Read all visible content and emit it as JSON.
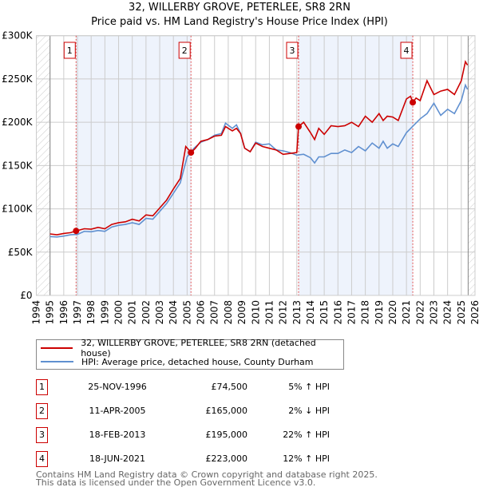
{
  "title_line1": "32, WILLERBY GROVE, PETERLEE, SR8 2RN",
  "title_line2": "Price paid vs. HM Land Registry's House Price Index (HPI)",
  "colors": {
    "property": "#cc0000",
    "hpi": "#6090d0",
    "band": "#eef3fc"
  },
  "chart_data": {
    "type": "line",
    "xlim": [
      1994,
      2026
    ],
    "ylim": [
      0,
      300000
    ],
    "x_ticks": [
      1994,
      1995,
      1996,
      1997,
      1998,
      1999,
      2000,
      2001,
      2002,
      2003,
      2004,
      2005,
      2006,
      2007,
      2008,
      2009,
      2010,
      2011,
      2012,
      2013,
      2014,
      2015,
      2016,
      2017,
      2018,
      2019,
      2020,
      2021,
      2022,
      2023,
      2024,
      2025,
      2026
    ],
    "y_ticks": [
      {
        "v": 0,
        "label": "£0"
      },
      {
        "v": 50000,
        "label": "£50K"
      },
      {
        "v": 100000,
        "label": "£100K"
      },
      {
        "v": 150000,
        "label": "£150K"
      },
      {
        "v": 200000,
        "label": "£200K"
      },
      {
        "v": 250000,
        "label": "£250K"
      },
      {
        "v": 300000,
        "label": "£300K"
      }
    ],
    "data_range": [
      1995,
      2025.5
    ],
    "series": [
      {
        "name": "32, WILLERBY GROVE, PETERLEE, SR8 2RN (detached house)",
        "x": [
          1995,
          1995.5,
          1996,
          1996.5,
          1996.9,
          1997.5,
          1998,
          1998.5,
          1999,
          1999.5,
          2000,
          2000.5,
          2001,
          2001.5,
          2002,
          2002.5,
          2003,
          2003.5,
          2004,
          2004.5,
          2004.9,
          2005.29,
          2005.6,
          2006,
          2006.5,
          2007,
          2007.5,
          2007.8,
          2008.3,
          2008.6,
          2008.9,
          2009.2,
          2009.6,
          2010,
          2010.5,
          2011,
          2011.5,
          2012,
          2012.5,
          2013.0,
          2013.13,
          2013.5,
          2014,
          2014.3,
          2014.6,
          2015,
          2015.5,
          2016,
          2016.5,
          2017,
          2017.5,
          2018,
          2018.5,
          2019,
          2019.3,
          2019.6,
          2020,
          2020.4,
          2021,
          2021.3,
          2021.46,
          2021.7,
          2022,
          2022.5,
          2023,
          2023.5,
          2024,
          2024.5,
          2025,
          2025.3,
          2025.45
        ],
        "y": [
          71000,
          70000,
          71500,
          72500,
          74500,
          77000,
          76500,
          78500,
          77000,
          82000,
          84000,
          85000,
          88000,
          86000,
          93000,
          92000,
          101000,
          110000,
          123000,
          135000,
          172000,
          165000,
          170000,
          178000,
          180000,
          184000,
          185000,
          195000,
          190000,
          193000,
          187000,
          170000,
          166000,
          176000,
          172000,
          170000,
          168000,
          163000,
          164000,
          165000,
          195000,
          200000,
          188000,
          180000,
          193000,
          186000,
          196000,
          195000,
          196000,
          200000,
          195000,
          207000,
          200000,
          210000,
          202000,
          207000,
          206000,
          202000,
          227000,
          230000,
          223000,
          228000,
          225000,
          248000,
          232000,
          236000,
          238000,
          232000,
          248000,
          270000,
          266000
        ]
      },
      {
        "name": "HPI: Average price, detached house, County Durham",
        "x": [
          1995,
          1995.5,
          1996,
          1996.5,
          1997,
          1997.5,
          1998,
          1998.5,
          1999,
          1999.5,
          2000,
          2000.5,
          2001,
          2001.5,
          2002,
          2002.5,
          2003,
          2003.5,
          2004,
          2004.5,
          2005,
          2005.5,
          2006,
          2006.5,
          2007,
          2007.5,
          2007.8,
          2008.3,
          2008.6,
          2008.9,
          2009.2,
          2009.6,
          2010,
          2010.5,
          2011,
          2011.5,
          2012,
          2012.5,
          2013,
          2013.5,
          2014,
          2014.3,
          2014.6,
          2015,
          2015.5,
          2016,
          2016.5,
          2017,
          2017.5,
          2018,
          2018.5,
          2019,
          2019.3,
          2019.6,
          2020,
          2020.4,
          2021,
          2021.5,
          2022,
          2022.5,
          2023,
          2023.5,
          2024,
          2024.5,
          2025,
          2025.3,
          2025.45
        ],
        "y": [
          68000,
          67500,
          68500,
          70000,
          70500,
          74000,
          73500,
          75000,
          74000,
          79000,
          81000,
          82000,
          84000,
          82000,
          89000,
          88000,
          97000,
          106000,
          118000,
          130000,
          160000,
          170000,
          177000,
          180000,
          185000,
          187000,
          199000,
          193000,
          197000,
          187000,
          170000,
          166000,
          177000,
          174000,
          175000,
          168000,
          167000,
          165000,
          162000,
          163000,
          159000,
          153000,
          160000,
          160000,
          164000,
          164000,
          168000,
          165000,
          172000,
          167000,
          176000,
          170000,
          178000,
          170000,
          175000,
          172000,
          188000,
          196000,
          204000,
          210000,
          222000,
          208000,
          215000,
          210000,
          225000,
          243000,
          238000
        ]
      }
    ]
  },
  "sales": [
    {
      "n": "1",
      "date": "25-NOV-1996",
      "price": "£74,500",
      "hpi": "5% ↑ HPI",
      "x": 1996.9,
      "y": 74500
    },
    {
      "n": "2",
      "date": "11-APR-2005",
      "price": "£165,000",
      "hpi": "2% ↓ HPI",
      "x": 2005.28,
      "y": 165000
    },
    {
      "n": "3",
      "date": "18-FEB-2013",
      "price": "£195,000",
      "hpi": "22% ↑ HPI",
      "x": 2013.13,
      "y": 195000
    },
    {
      "n": "4",
      "date": "18-JUN-2021",
      "price": "£223,000",
      "hpi": "12% ↑ HPI",
      "x": 2021.46,
      "y": 223000
    }
  ],
  "legend": {
    "property": "32, WILLERBY GROVE, PETERLEE, SR8 2RN (detached house)",
    "hpi": "HPI: Average price, detached house, County Durham"
  },
  "footer": {
    "line1": "Contains HM Land Registry data © Crown copyright and database right 2025.",
    "line2": "This data is licensed under the Open Government Licence v3.0."
  }
}
